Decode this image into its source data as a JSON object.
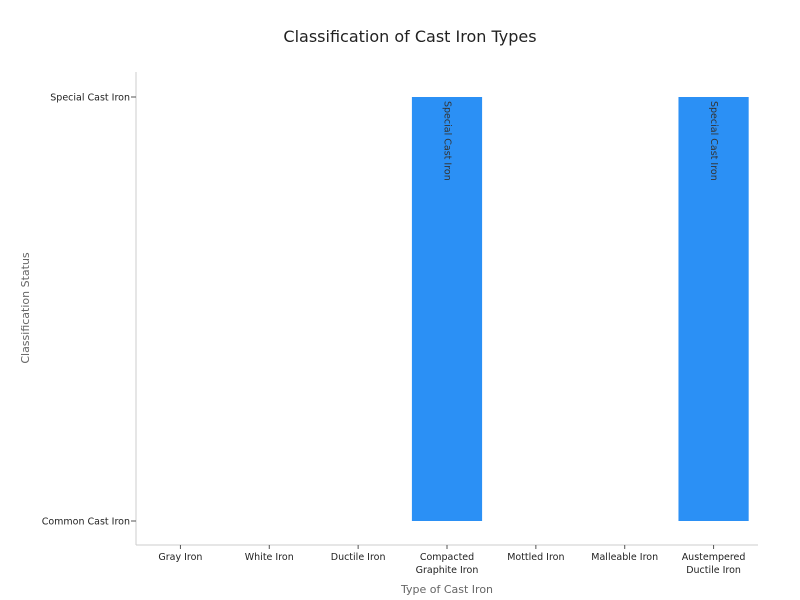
{
  "chart_data": {
    "type": "bar",
    "title": "Classification of Cast Iron Types",
    "xlabel": "Type of Cast Iron",
    "ylabel": "Classification Status",
    "categories": [
      [
        "Gray Iron"
      ],
      [
        "White Iron"
      ],
      [
        "Ductile Iron"
      ],
      [
        "Compacted",
        "Graphite Iron"
      ],
      [
        "Mottled Iron"
      ],
      [
        "Malleable Iron"
      ],
      [
        "Austempered",
        "Ductile Iron"
      ]
    ],
    "y_categories": [
      "Common Cast Iron",
      "Special Cast Iron"
    ],
    "values": [
      "Common Cast Iron",
      "Common Cast Iron",
      "Common Cast Iron",
      "Special Cast Iron",
      "Common Cast Iron",
      "Common Cast Iron",
      "Special Cast Iron"
    ],
    "bar_labels": [
      "",
      "",
      "",
      "Special Cast Iron",
      "",
      "",
      "Special Cast Iron"
    ],
    "bar_color": "#2b90f5",
    "axis_color": "#cccccc",
    "grid": false,
    "legend": "none"
  }
}
